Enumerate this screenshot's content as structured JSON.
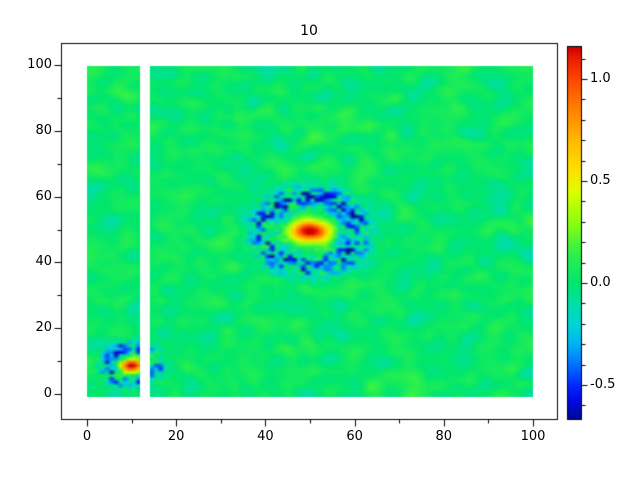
{
  "chart_data": {
    "type": "heatmap",
    "title": "10",
    "grid": [
      100,
      100
    ],
    "x_ticks": [
      0,
      20,
      40,
      60,
      80,
      100
    ],
    "x_tick_labels": [
      "0",
      "20",
      "40",
      "60",
      "80",
      "100"
    ],
    "x_minor_ticks": [
      10,
      30,
      50,
      70,
      90
    ],
    "y_ticks": [
      0,
      20,
      40,
      60,
      80,
      100
    ],
    "y_tick_labels": [
      "0",
      "20",
      "40",
      "60",
      "80",
      "100"
    ],
    "y_minor_ticks": [
      10,
      30,
      50,
      70,
      90
    ],
    "data_extent": {
      "x": [
        0,
        100
      ],
      "y": [
        0,
        100
      ]
    },
    "masked_column_range": [
      12,
      14
    ],
    "background": {
      "mean": 0.02,
      "noise_sigma": 0.05,
      "speckle_prob": 0.005,
      "speckle_amp": 0.65
    },
    "sources": [
      {
        "x": 50,
        "y": 50,
        "peak": 1.02,
        "sigma_x": 2.9,
        "sigma_y": 2.0,
        "halo_amp": 0.22,
        "halo_sigma": 5.5,
        "ring_radius": 10.5,
        "ring_width": 2.6,
        "ring_depth": -0.6
      },
      {
        "x": 10,
        "y": 9.5,
        "peak": 1.1,
        "sigma_x": 1.7,
        "sigma_y": 1.35,
        "halo_amp": 0.15,
        "halo_sigma": 3.0,
        "ring_radius": 5.2,
        "ring_width": 1.6,
        "ring_depth": -0.55
      }
    ],
    "colorbar": {
      "vmax": 1.16,
      "vmin": -0.667,
      "tick_values": [
        1.0,
        0.5,
        0.0,
        -0.5
      ],
      "tick_labels": [
        "1.0",
        "0.5",
        "0.0",
        "-0.5"
      ],
      "minor_tick_step": 0.1,
      "colormap_stops": [
        [
          1.16,
          "#c80000"
        ],
        [
          1.1,
          "#ee1e00"
        ],
        [
          1.0,
          "#ff4600"
        ],
        [
          0.85,
          "#ff8200"
        ],
        [
          0.7,
          "#ffb900"
        ],
        [
          0.55,
          "#ffe100"
        ],
        [
          0.45,
          "#ddff00"
        ],
        [
          0.3,
          "#8cff0e"
        ],
        [
          0.15,
          "#30f14a"
        ],
        [
          0.0,
          "#00e66e"
        ],
        [
          -0.1,
          "#00dfa8"
        ],
        [
          -0.2,
          "#00d5d5"
        ],
        [
          -0.3,
          "#00b2f5"
        ],
        [
          -0.4,
          "#0072ff"
        ],
        [
          -0.5,
          "#0028ff"
        ],
        [
          -0.58,
          "#0008e0"
        ],
        [
          -0.667,
          "#000896"
        ]
      ]
    },
    "seed": 42
  }
}
